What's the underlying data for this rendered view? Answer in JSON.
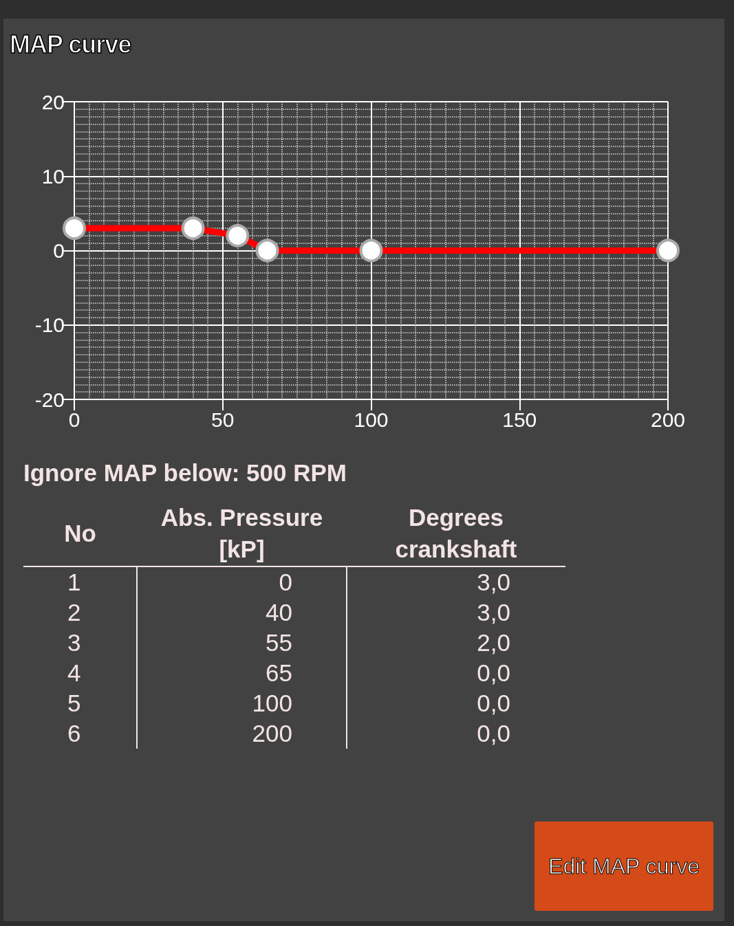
{
  "chart_data": {
    "type": "line",
    "title": "MAP curve",
    "x": [
      0,
      40,
      55,
      65,
      100,
      200
    ],
    "series": [
      {
        "color": "#ff0000",
        "values": [
          3,
          3,
          2,
          0,
          0,
          0
        ]
      }
    ],
    "xlim": [
      0,
      200
    ],
    "xticks": [
      0,
      50,
      100,
      150,
      200
    ],
    "ylim": [
      -20,
      20
    ],
    "yticks": [
      -20,
      -10,
      0,
      10,
      20
    ],
    "grid": true,
    "marker": "circle",
    "line_style": "solid",
    "annotations": [
      "Ignore MAP below: 500 RPM",
      "No",
      "Abs. Pressure [kP]",
      "Degrees crankshaft",
      "Edit MAP curve",
      "1",
      "0",
      "3,0",
      "2",
      "40",
      "3,0",
      "3",
      "55",
      "2,0",
      "4",
      "65",
      "0,0",
      "5",
      "100",
      "0,0",
      "6",
      "200",
      "0,0"
    ]
  }
}
